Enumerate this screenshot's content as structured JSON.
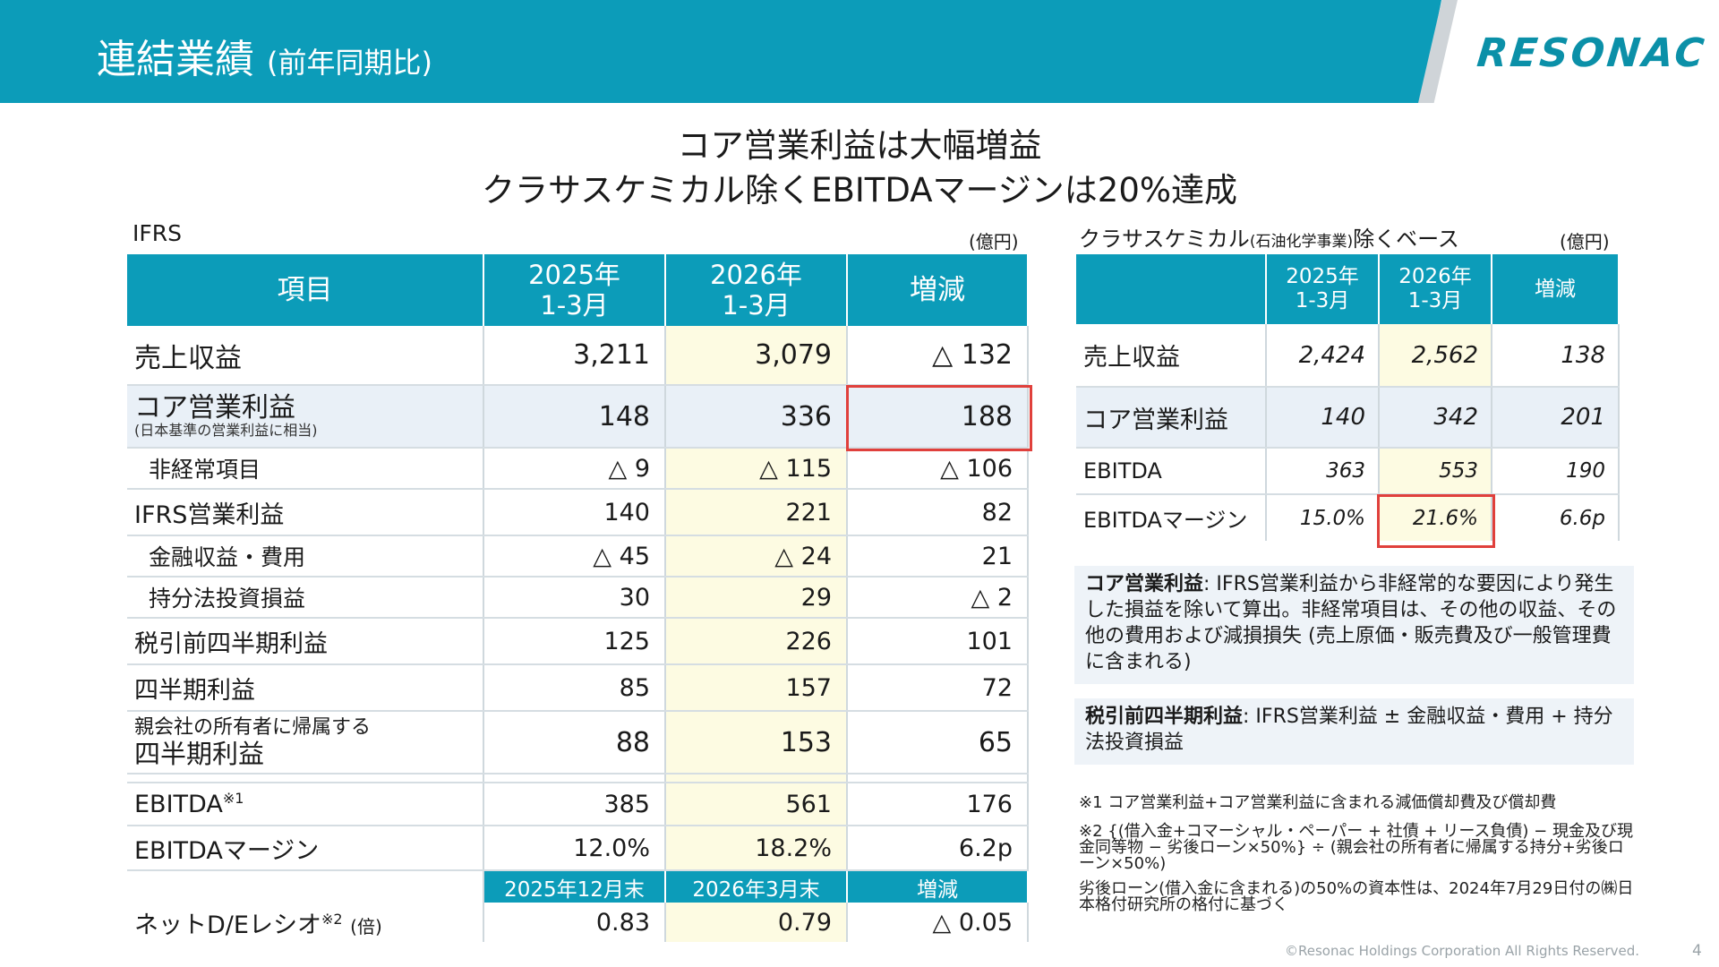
{
  "header": {
    "title": "連結業績",
    "subtitle": "(前年同期比)",
    "logo": "RESONAC"
  },
  "headline": {
    "line1": "コア営業利益は大幅増益",
    "line2": "クラサスケミカル除くEBITDAマージンは20%達成"
  },
  "left": {
    "label": "IFRS",
    "unit": "(億円)",
    "columns": [
      "項目",
      "2025年\n1-3月",
      "2026年\n1-3月",
      "増減"
    ],
    "rows": [
      {
        "label": "売上収益",
        "v2025": "3,211",
        "v2026": "3,079",
        "diff": "△ 132"
      },
      {
        "label": "コア営業利益",
        "note": "(日本基準の営業利益に相当)",
        "v2025": "148",
        "v2026": "336",
        "diff": "188"
      },
      {
        "label": "非経常項目",
        "v2025": "△ 9",
        "v2026": "△ 115",
        "diff": "△ 106"
      },
      {
        "label": "IFRS営業利益",
        "v2025": "140",
        "v2026": "221",
        "diff": "82"
      },
      {
        "label": "金融収益・費用",
        "v2025": "△ 45",
        "v2026": "△ 24",
        "diff": "21"
      },
      {
        "label": "持分法投資損益",
        "v2025": "30",
        "v2026": "29",
        "diff": "△ 2"
      },
      {
        "label": "税引前四半期利益",
        "v2025": "125",
        "v2026": "226",
        "diff": "101"
      },
      {
        "label": "四半期利益",
        "v2025": "85",
        "v2026": "157",
        "diff": "72"
      },
      {
        "label_top": "親会社の所有者に帰属する",
        "label": "四半期利益",
        "v2025": "88",
        "v2026": "153",
        "diff": "65"
      },
      {
        "label": "EBITDA",
        "sup": "※1",
        "v2025": "385",
        "v2026": "561",
        "diff": "176"
      },
      {
        "label": "EBITDAマージン",
        "v2025": "12.0%",
        "v2026": "18.2%",
        "diff": "6.2p"
      }
    ],
    "sub_header": [
      "2025年12月末",
      "2026年3月末",
      "増減"
    ],
    "de_row": {
      "label": "ネットD/Eレシオ",
      "sup": "※2",
      "suffix": "(倍)",
      "v2025": "0.83",
      "v2026": "0.79",
      "diff": "△ 0.05"
    }
  },
  "right": {
    "label_main": "クラサスケミカル",
    "label_paren": "(石油化学事業)",
    "label_tail": "除くベース",
    "unit": "(億円)",
    "columns": [
      "",
      "2025年\n1-3月",
      "2026年\n1-3月",
      "増減"
    ],
    "rows": [
      {
        "label": "売上収益",
        "v2025": "2,424",
        "v2026": "2,562",
        "diff": "138"
      },
      {
        "label": "コア営業利益",
        "v2025": "140",
        "v2026": "342",
        "diff": "201"
      },
      {
        "label": "EBITDA",
        "v2025": "363",
        "v2026": "553",
        "diff": "190"
      },
      {
        "label": "EBITDAマージン",
        "v2025": "15.0%",
        "v2026": "21.6%",
        "diff": "6.6p"
      }
    ]
  },
  "definitions": {
    "core_term": "コア営業利益",
    "core_text": ": IFRS営業利益から非経常的な要因により発生した損益を除いて算出。非経常項目は、その他の収益、その他の費用および減損損失 (売上原価・販売費及び一般管理費に含まれる)",
    "pretax_term": "税引前四半期利益",
    "pretax_text": ": IFRS営業利益 ± 金融収益・費用 + 持分法投資損益"
  },
  "footnotes": {
    "n1": "※1 コア営業利益+コア営業利益に含まれる減価償却費及び償却費",
    "n2a": "※2 {(借入金+コマーシャル・ペーパー + 社債 + リース負債) − 現金及び現金同等物 − 劣後ローン×50%} ÷ (親会社の所有者に帰属する持分+劣後ローン×50%)",
    "n2b": "劣後ローン(借入金に含まれる)の50%の資本性は、2024年7月29日付の㈱日本格付研究所の格付に基づく"
  },
  "footer": {
    "copyright": "©Resonac Holdings Corporation  All Rights Reserved.",
    "page": "4"
  },
  "colors": {
    "teal": "#0c9cb9",
    "highlight": "#fdfbe2",
    "shade": "#e9f0f7",
    "red_box": "#e0403c"
  }
}
